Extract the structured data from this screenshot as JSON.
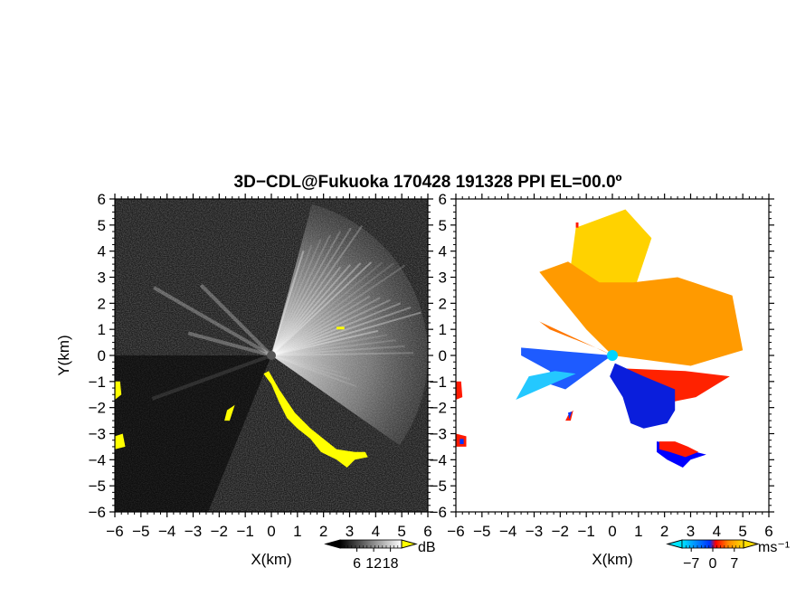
{
  "figure": {
    "title": "3D−CDL@Fukuoka 170428 191328 PPI EL=00.0º"
  },
  "chart_data": [
    {
      "type": "heatmap",
      "panel": "reflectivity",
      "xlabel": "X(km)",
      "ylabel": "Y(km)",
      "xlim": [
        -6,
        6
      ],
      "ylim": [
        -6,
        6
      ],
      "xticks": [
        "−6",
        "−5",
        "−4",
        "−3",
        "−2",
        "−1",
        "0",
        "1",
        "2",
        "3",
        "4",
        "5",
        "6"
      ],
      "yticks": [
        "−6",
        "−5",
        "−4",
        "−3",
        "−2",
        "−1",
        "0",
        "1",
        "2",
        "3",
        "4",
        "5",
        "6"
      ],
      "colorbar": {
        "unit": "dB",
        "ticks": [
          6,
          12,
          18
        ],
        "tick_labels": [
          "6",
          "12",
          "18"
        ],
        "colors": [
          "#000000",
          "#ffffff"
        ],
        "over_color": "#ffff00"
      },
      "background_color": "#1e1e1e",
      "over_color": "#ffff00",
      "bright_fan": {
        "from_deg": -35,
        "to_deg": 75,
        "range_km": 6
      },
      "dark_wedge": {
        "from_deg": 180,
        "to_deg": 248
      },
      "over_regions": [
        {
          "points": [
            [
              -0.1,
              -0.6
            ],
            [
              0.3,
              -1.3
            ],
            [
              0.9,
              -2.2
            ],
            [
              1.5,
              -2.8
            ],
            [
              2.0,
              -3.2
            ],
            [
              2.5,
              -3.6
            ],
            [
              3.2,
              -3.7
            ],
            [
              3.6,
              -3.7
            ],
            [
              3.7,
              -3.9
            ],
            [
              3.2,
              -4.0
            ],
            [
              2.9,
              -4.3
            ],
            [
              2.5,
              -4.0
            ],
            [
              1.9,
              -3.7
            ],
            [
              1.5,
              -3.2
            ],
            [
              1.0,
              -2.8
            ],
            [
              0.6,
              -2.4
            ],
            [
              0.3,
              -1.8
            ],
            [
              0.0,
              -1.1
            ],
            [
              -0.3,
              -0.7
            ]
          ]
        },
        {
          "points": [
            [
              -6.0,
              -1.0
            ],
            [
              -5.8,
              -1.0
            ],
            [
              -5.75,
              -1.5
            ],
            [
              -6.0,
              -1.7
            ]
          ]
        },
        {
          "points": [
            [
              -6.0,
              -3.1
            ],
            [
              -5.7,
              -3.0
            ],
            [
              -5.6,
              -3.5
            ],
            [
              -6.0,
              -3.6
            ]
          ]
        },
        {
          "points": [
            [
              2.5,
              1.1
            ],
            [
              2.8,
              1.1
            ],
            [
              2.8,
              1.0
            ],
            [
              2.5,
              1.0
            ]
          ]
        },
        {
          "points": [
            [
              -1.7,
              -2.1
            ],
            [
              -1.4,
              -1.9
            ],
            [
              -1.6,
              -2.5
            ],
            [
              -1.8,
              -2.5
            ]
          ]
        }
      ]
    },
    {
      "type": "heatmap",
      "panel": "doppler-velocity",
      "xlabel": "X(km)",
      "xlim": [
        -6,
        6
      ],
      "ylim": [
        -6,
        6
      ],
      "xticks": [
        "−6",
        "−5",
        "−4",
        "−3",
        "−2",
        "−1",
        "0",
        "1",
        "2",
        "3",
        "4",
        "5",
        "6"
      ],
      "yticks": [
        "−6",
        "−5",
        "−4",
        "−3",
        "−2",
        "−1",
        "0",
        "1",
        "2",
        "3",
        "4",
        "5",
        "6"
      ],
      "colorbar": {
        "unit": "ms⁻¹",
        "ticks": [
          -7,
          0,
          7
        ],
        "tick_labels": [
          "−7",
          "0",
          "7"
        ],
        "colors": [
          "#00e5ff",
          "#0033ff",
          "#ff0000",
          "#ff8800",
          "#ffdd00"
        ]
      },
      "background_color": "#ffffff",
      "regions": [
        {
          "color": "#ffd200",
          "points": [
            [
              0,
              0
            ],
            [
              1.5,
              4.5
            ],
            [
              0.5,
              5.6
            ],
            [
              -1.4,
              4.9
            ],
            [
              -1.6,
              3.4
            ],
            [
              -0.6,
              1.4
            ]
          ]
        },
        {
          "color": "#ff9a00",
          "points": [
            [
              0,
              0
            ],
            [
              -1.0,
              1.0
            ],
            [
              -2.8,
              3.2
            ],
            [
              -1.7,
              3.6
            ],
            [
              -0.5,
              2.8
            ],
            [
              0.8,
              2.8
            ],
            [
              2.5,
              3.0
            ],
            [
              4.6,
              2.3
            ],
            [
              5.0,
              0.2
            ],
            [
              3.0,
              -0.4
            ]
          ]
        },
        {
          "color": "#ff7700",
          "points": [
            [
              0,
              0
            ],
            [
              -2.8,
              1.3
            ],
            [
              -2.4,
              1.0
            ],
            [
              -0.4,
              0.2
            ]
          ]
        },
        {
          "color": "#ff2200",
          "points": [
            [
              0.4,
              -0.5
            ],
            [
              2.8,
              -0.6
            ],
            [
              4.5,
              -0.8
            ],
            [
              3.2,
              -1.6
            ],
            [
              2.2,
              -1.8
            ],
            [
              1.2,
              -1.0
            ]
          ]
        },
        {
          "color": "#1e5bff",
          "points": [
            [
              0,
              0
            ],
            [
              -3.5,
              0.3
            ],
            [
              -3.5,
              0
            ],
            [
              -2.4,
              -0.6
            ],
            [
              -2.4,
              -1.1
            ],
            [
              -1.8,
              -1.3
            ],
            [
              -0.3,
              -0.2
            ]
          ]
        },
        {
          "color": "#24c8ff",
          "points": [
            [
              -1.4,
              -0.7
            ],
            [
              -2.1,
              -1.0
            ],
            [
              -2.8,
              -1.3
            ],
            [
              -3.7,
              -1.7
            ],
            [
              -3.2,
              -0.8
            ],
            [
              -2.2,
              -0.6
            ]
          ]
        },
        {
          "color": "#0a1edc",
          "points": [
            [
              0.1,
              -0.3
            ],
            [
              1.2,
              -0.8
            ],
            [
              2.4,
              -1.3
            ],
            [
              2.4,
              -2.1
            ],
            [
              2.1,
              -2.6
            ],
            [
              1.2,
              -2.8
            ],
            [
              0.7,
              -2.6
            ],
            [
              0.4,
              -1.6
            ],
            [
              -0.1,
              -0.8
            ]
          ]
        },
        {
          "color": "#0000ff",
          "points": [
            [
              1.7,
              -3.3
            ],
            [
              2.5,
              -3.4
            ],
            [
              3.2,
              -3.7
            ],
            [
              3.6,
              -3.8
            ],
            [
              3.0,
              -4.0
            ],
            [
              2.7,
              -4.3
            ],
            [
              2.1,
              -4.0
            ],
            [
              1.7,
              -3.7
            ]
          ]
        },
        {
          "color": "#ff1a00",
          "points": [
            [
              1.8,
              -3.3
            ],
            [
              2.4,
              -3.3
            ],
            [
              2.9,
              -3.5
            ],
            [
              3.3,
              -3.7
            ],
            [
              2.8,
              -3.9
            ],
            [
              2.2,
              -3.7
            ],
            [
              1.8,
              -3.6
            ]
          ]
        },
        {
          "color": "#ff1a00",
          "points": [
            [
              -6.0,
              -1.0
            ],
            [
              -5.8,
              -1.0
            ],
            [
              -5.75,
              -1.6
            ],
            [
              -6.0,
              -1.7
            ]
          ]
        },
        {
          "color": "#ff1a00",
          "points": [
            [
              -6.0,
              -3.0
            ],
            [
              -5.6,
              -3.1
            ],
            [
              -5.6,
              -3.5
            ],
            [
              -6.0,
              -3.5
            ]
          ]
        },
        {
          "color": "#0033ff",
          "points": [
            [
              -5.85,
              -3.2
            ],
            [
              -5.7,
              -3.2
            ],
            [
              -5.7,
              -3.4
            ],
            [
              -5.85,
              -3.4
            ]
          ]
        },
        {
          "color": "#ff1a00",
          "points": [
            [
              -1.7,
              -2.3
            ],
            [
              -1.5,
              -2.1
            ],
            [
              -1.6,
              -2.5
            ],
            [
              -1.8,
              -2.5
            ]
          ]
        },
        {
          "color": "#0033ff",
          "points": [
            [
              -1.7,
              -2.2
            ],
            [
              -1.55,
              -2.15
            ],
            [
              -1.65,
              -2.45
            ]
          ]
        },
        {
          "color": "#ff1a00",
          "points": [
            [
              -1.4,
              5.1
            ],
            [
              -1.3,
              5.1
            ],
            [
              -1.3,
              4.9
            ],
            [
              -1.4,
              4.9
            ]
          ]
        }
      ],
      "center_marker_color": "#00d4ff"
    }
  ]
}
